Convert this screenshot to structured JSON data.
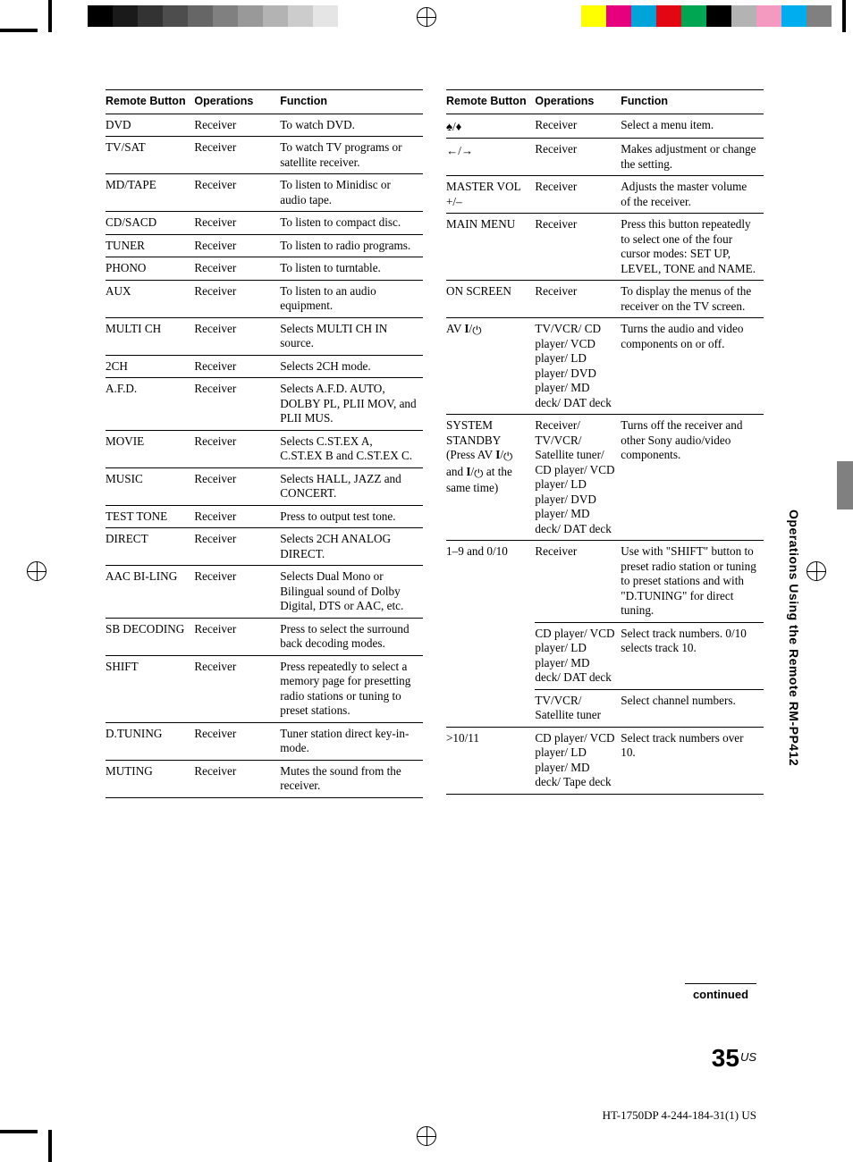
{
  "print_marks": {
    "left_swatches": [
      "#000000",
      "#1a1a1a",
      "#333333",
      "#4d4d4d",
      "#666666",
      "#808080",
      "#999999",
      "#b3b3b3",
      "#cccccc",
      "#e5e5e5",
      "#ffffff"
    ],
    "right_swatches": [
      "#ffff00",
      "#e6007e",
      "#00a4d8",
      "#e30613",
      "#00a651",
      "#000000",
      "#b3b3b3",
      "#f49ac1",
      "#00aeef",
      "#808080"
    ]
  },
  "side_label": "Operations Using the Remote RM-PP412",
  "headers": {
    "c1": "Remote Button",
    "c2": "Operations",
    "c3": "Function"
  },
  "left_table": [
    {
      "btn": "DVD",
      "op": "Receiver",
      "fn": "To watch DVD."
    },
    {
      "btn": "TV/SAT",
      "op": "Receiver",
      "fn": "To watch TV programs or satellite receiver."
    },
    {
      "btn": "MD/TAPE",
      "op": "Receiver",
      "fn": "To listen to Minidisc or audio tape."
    },
    {
      "btn": "CD/SACD",
      "op": "Receiver",
      "fn": "To listen to compact disc."
    },
    {
      "btn": "TUNER",
      "op": "Receiver",
      "fn": "To listen to radio programs."
    },
    {
      "btn": "PHONO",
      "op": "Receiver",
      "fn": "To listen to turntable."
    },
    {
      "btn": "AUX",
      "op": "Receiver",
      "fn": "To listen to an audio equipment."
    },
    {
      "btn": "MULTI CH",
      "op": "Receiver",
      "fn": "Selects MULTI CH IN source."
    },
    {
      "btn": "2CH",
      "op": "Receiver",
      "fn": "Selects 2CH mode."
    },
    {
      "btn": "A.F.D.",
      "op": "Receiver",
      "fn": "Selects A.F.D. AUTO, DOLBY PL, PLII MOV, and PLII MUS."
    },
    {
      "btn": "MOVIE",
      "op": "Receiver",
      "fn": "Selects C.ST.EX A, C.ST.EX B and C.ST.EX C."
    },
    {
      "btn": "MUSIC",
      "op": "Receiver",
      "fn": "Selects HALL, JAZZ and CONCERT."
    },
    {
      "btn": "TEST TONE",
      "op": "Receiver",
      "fn": "Press to output test tone."
    },
    {
      "btn": "DIRECT",
      "op": "Receiver",
      "fn": "Selects 2CH ANALOG DIRECT."
    },
    {
      "btn": "AAC BI-LING",
      "op": "Receiver",
      "fn": "Selects Dual Mono or Bilingual sound of Dolby Digital, DTS or AAC, etc."
    },
    {
      "btn": "SB DECODING",
      "op": "Receiver",
      "fn": "Press to select the surround back decoding modes."
    },
    {
      "btn": "SHIFT",
      "op": "Receiver",
      "fn": "Press repeatedly to select a memory page for presetting radio stations or tuning to preset stations."
    },
    {
      "btn": "D.TUNING",
      "op": "Receiver",
      "fn": "Tuner station direct key-in-mode."
    },
    {
      "btn": "MUTING",
      "op": "Receiver",
      "fn": "Mutes the sound from the receiver."
    }
  ],
  "right_table": [
    {
      "btn_html": "<span class='icon' data-name='cursor-up-down-icon' data-interactable='false'>♠/♦</span>",
      "op": "Receiver",
      "fn": "Select a menu item."
    },
    {
      "btn_html": "<span class='icon' data-name='cursor-left-right-icon' data-interactable='false'>←/→</span>",
      "op": "Receiver",
      "fn": "Makes adjustment or change the setting."
    },
    {
      "btn": "MASTER VOL +/–",
      "op": "Receiver",
      "fn": "Adjusts the master volume of the receiver."
    },
    {
      "btn": "MAIN MENU",
      "op": "Receiver",
      "fn": "Press this button repeatedly to select one of the four cursor modes: SET UP, LEVEL, TONE and NAME."
    },
    {
      "btn": "ON SCREEN",
      "op": "Receiver",
      "fn": "To display the menus of the receiver on the TV screen."
    },
    {
      "btn_html": "AV <b>I</b>/<span class='icon' data-name='power-icon' data-interactable='false'>⏻</span>",
      "op": "TV/VCR/ CD player/ VCD player/ LD player/ DVD player/ MD deck/ DAT deck",
      "fn": "Turns the audio and video components on or off."
    },
    {
      "btn_html": "SYSTEM STANDBY (Press AV <b>I</b>/<span class='icon' data-name='power-icon' data-interactable='false'>⏻</span> and <b>I</b>/<span class='icon' data-name='power-icon' data-interactable='false'>⏻</span> at the same time)",
      "op": "Receiver/ TV/VCR/ Satellite tuner/ CD player/ VCD player/ LD player/ DVD player/ MD deck/ DAT deck",
      "fn": "Turns off the receiver and other Sony audio/video components."
    },
    {
      "btn": "1–9 and 0/10",
      "op": "Receiver",
      "fn": "Use with \"SHIFT\" button to preset radio station or tuning to preset stations and with \"D.TUNING\" for direct tuning.",
      "noborder": true
    },
    {
      "btn": "",
      "op": "CD player/ VCD player/ LD player/ MD deck/ DAT deck",
      "fn": "Select track numbers. 0/10 selects track 10.",
      "noborder": true
    },
    {
      "btn": "",
      "op": "TV/VCR/ Satellite tuner",
      "fn": "Select channel numbers."
    },
    {
      "btn": ">10/11",
      "op": "CD player/ VCD player/ LD player/ MD deck/ Tape deck",
      "fn": "Select track numbers over 10."
    }
  ],
  "continued": "continued",
  "page_number": "35",
  "page_suffix": "US",
  "footer": "HT-1750DP   4-244-184-31(1) US"
}
